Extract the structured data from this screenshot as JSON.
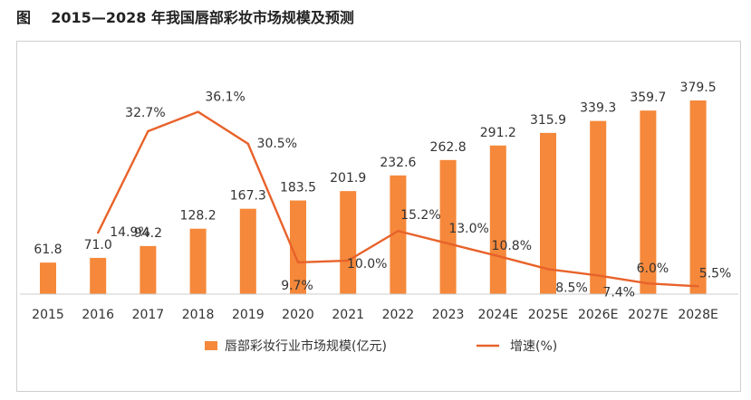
{
  "title": "图    2015—2028 年我国唇部彩妆市场规模及预测",
  "colors": {
    "bar": "#F5883A",
    "line": "#E8622A",
    "axis": "#cccccc",
    "text": "#333333"
  },
  "chart_data": {
    "type": "bar",
    "title": "图    2015—2028 年我国唇部彩妆市场规模及预测",
    "categories": [
      "2015",
      "2016",
      "2017",
      "2018",
      "2019",
      "2020",
      "2021",
      "2022",
      "2023",
      "2024E",
      "2025E",
      "2026E",
      "2027E",
      "2028E"
    ],
    "series": [
      {
        "name": "唇部彩妆行业市场规模(亿元)",
        "type": "bar",
        "values": [
          61.8,
          71.0,
          94.2,
          128.2,
          167.3,
          183.5,
          201.9,
          232.6,
          262.8,
          291.2,
          315.9,
          339.3,
          359.7,
          379.5
        ],
        "labels": [
          "61.8",
          "71.0",
          "94.2",
          "128.2",
          "167.3",
          "183.5",
          "201.9",
          "232.6",
          "262.8",
          "291.2",
          "315.9",
          "339.3",
          "359.7",
          "379.5"
        ]
      },
      {
        "name": "增速(%)",
        "type": "line",
        "values": [
          null,
          14.9,
          32.7,
          36.1,
          30.5,
          9.7,
          10.0,
          15.2,
          13.0,
          10.8,
          8.5,
          7.4,
          6.0,
          5.5
        ],
        "labels": [
          null,
          "14.9%",
          "32.7%",
          "36.1%",
          "30.5%",
          "9.7%",
          "10.0%",
          "15.2%",
          "13.0%",
          "10.8%",
          "8.5%",
          "7.4%",
          "6.0%",
          "5.5%"
        ]
      }
    ],
    "legend_position": "bottom",
    "grid": false
  }
}
